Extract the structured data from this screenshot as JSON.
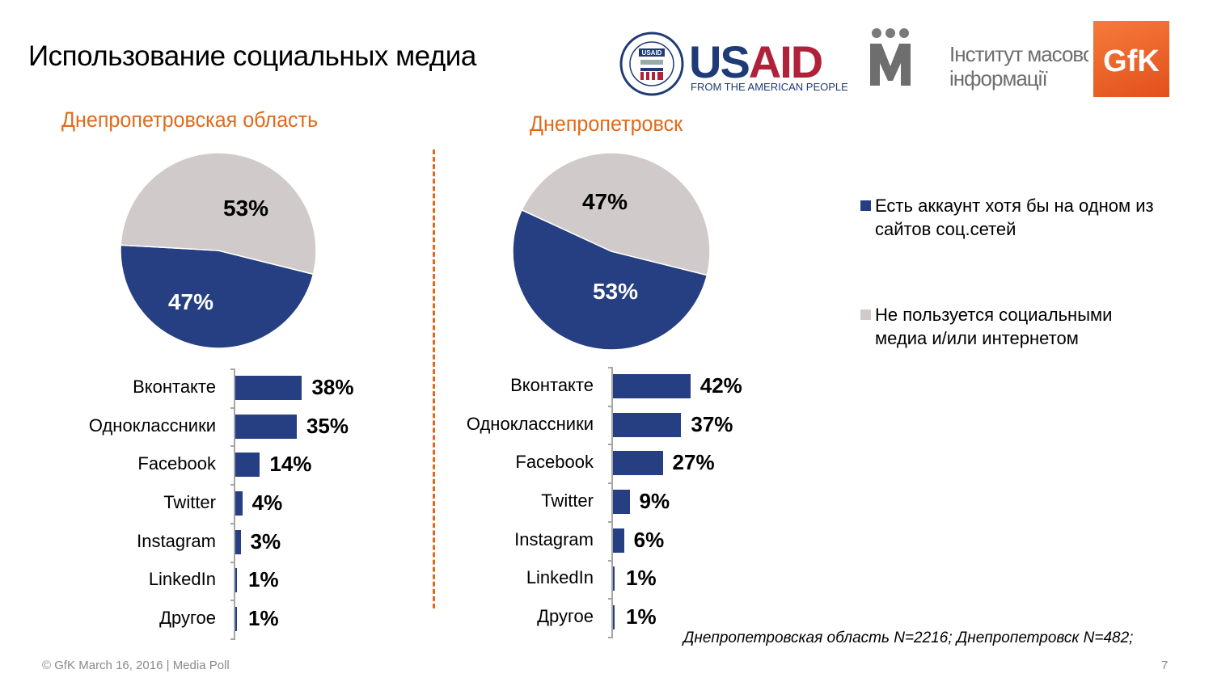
{
  "title": "Использование социальных медиа",
  "logos": {
    "usaid": {
      "main": "USAID",
      "tagline": "FROM THE AMERICAN PEOPLE",
      "seal_text": "USAID"
    },
    "imi": {
      "line1": "Інститут масової",
      "line2": "інформації"
    },
    "gfk": {
      "text": "GfK"
    }
  },
  "colors": {
    "accent": "#e06a1b",
    "blue": "#253f82",
    "gray": "#d0cbca"
  },
  "legend": [
    {
      "label": "Есть аккаунт хотя бы на одном из сайтов соц.сетей",
      "color": "#253f82"
    },
    {
      "label": "Не пользуется социальными медиа и/или интернетом",
      "color": "#d0cbca"
    }
  ],
  "chart_data": [
    {
      "type": "pie",
      "title": "Днепропетровская область",
      "slices": [
        {
          "label": "Есть аккаунт хотя бы на одном из сайтов соц.сетей",
          "value": 47,
          "display": "47%"
        },
        {
          "label": "Не пользуется социальными медиа и/или интернетом",
          "value": 53,
          "display": "53%"
        }
      ]
    },
    {
      "type": "pie",
      "title": "Днепропетровск",
      "slices": [
        {
          "label": "Есть аккаунт хотя бы на одном из сайтов соц.сетей",
          "value": 53,
          "display": "53%"
        },
        {
          "label": "Не пользуется социальными медиа и/или интернетом",
          "value": 47,
          "display": "47%"
        }
      ]
    },
    {
      "type": "bar",
      "orientation": "horizontal",
      "title": "Днепропетровская область",
      "categories": [
        "Вконтакте",
        "Одноклассники",
        "Facebook",
        "Twitter",
        "Instagram",
        "LinkedIn",
        "Другое"
      ],
      "values": [
        38,
        35,
        14,
        4,
        3,
        1,
        1
      ],
      "labels": [
        "38%",
        "35%",
        "14%",
        "4%",
        "3%",
        "1%",
        "1%"
      ]
    },
    {
      "type": "bar",
      "orientation": "horizontal",
      "title": "Днепропетровск",
      "categories": [
        "Вконтакте",
        "Одноклассники",
        "Facebook",
        "Twitter",
        "Instagram",
        "LinkedIn",
        "Другое"
      ],
      "values": [
        42,
        37,
        27,
        9,
        6,
        1,
        1
      ],
      "labels": [
        "42%",
        "37%",
        "27%",
        "9%",
        "6%",
        "1%",
        "1%"
      ]
    }
  ],
  "note": "Днепропетровская область N=2216; Днепропетровск N=482;",
  "footer": "© GfK March 16, 2016 | Media Poll",
  "page_number": "7"
}
